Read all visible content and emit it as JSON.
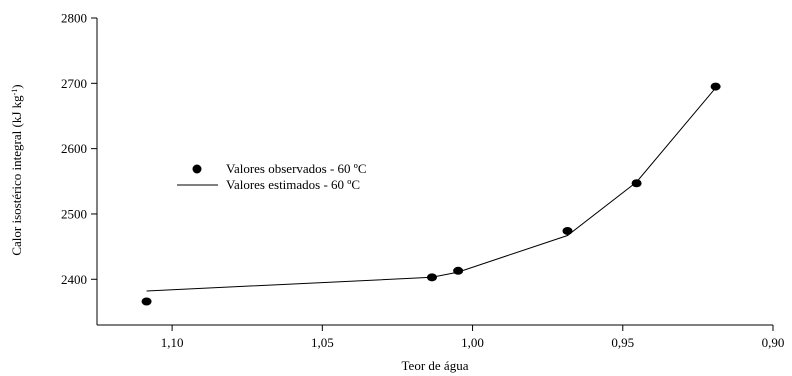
{
  "chart_data": {
    "type": "scatter",
    "title": "",
    "xlabel": "Teor de água",
    "ylabel": "Calor isostérico integral (kJ kg",
    "ylabel_superscript": "-1",
    "ylabel_suffix": ")",
    "x_reversed": true,
    "xlim": [
      1.125,
      0.9
    ],
    "ylim": [
      2330,
      2800
    ],
    "x_ticks": [
      1.1,
      1.05,
      1.0,
      0.95,
      0.9
    ],
    "x_tick_labels": [
      "1,10",
      "1,05",
      "1,00",
      "0,95",
      "0,90"
    ],
    "y_ticks": [
      2400,
      2500,
      2600,
      2700,
      2800
    ],
    "y_tick_labels": [
      "2400",
      "2500",
      "2600",
      "2700",
      "2800"
    ],
    "grid": false,
    "legend_position": "left-middle",
    "series": [
      {
        "name": "Valores observados - 60 ºC",
        "kind": "points",
        "color": "#000000",
        "x": [
          1.1085,
          1.0135,
          1.0048,
          0.9684,
          0.9454,
          0.9191
        ],
        "y": [
          2366,
          2403,
          2413,
          2474,
          2547,
          2695
        ]
      },
      {
        "name": "Valores estimados - 60 ºC",
        "kind": "line",
        "color": "#000000",
        "x": [
          1.1085,
          1.0135,
          1.0048,
          0.9684,
          0.9454,
          0.9191
        ],
        "y": [
          2382,
          2403,
          2411,
          2467,
          2549,
          2693
        ]
      }
    ]
  }
}
